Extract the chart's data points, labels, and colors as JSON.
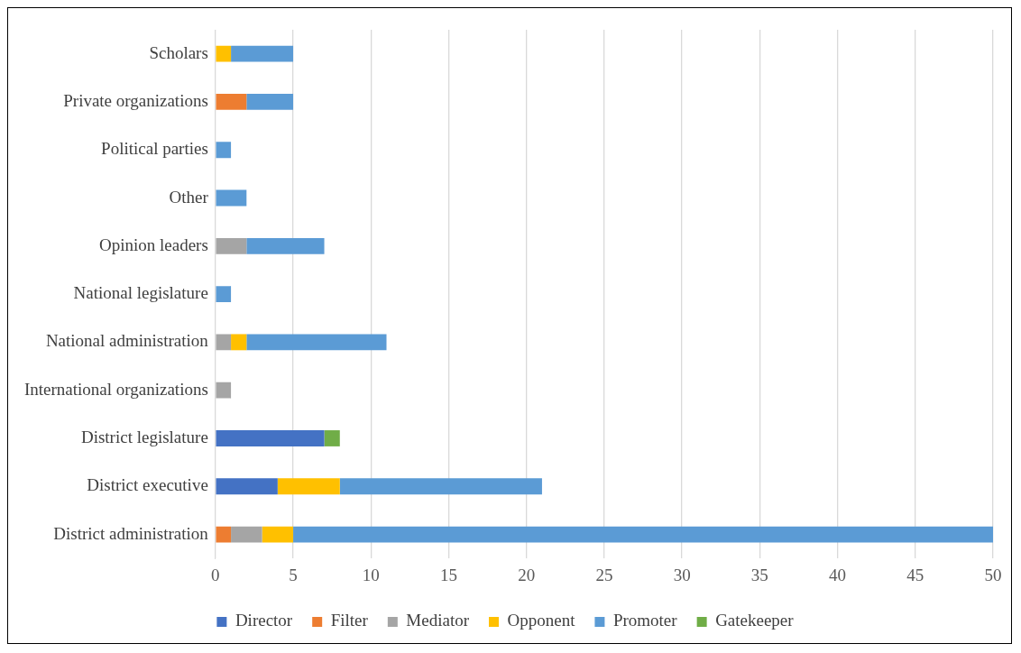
{
  "chart_data": {
    "type": "bar",
    "orientation": "horizontal",
    "stacked": true,
    "categories": [
      "Scholars",
      "Private organizations",
      "Political parties",
      "Other",
      "Opinion leaders",
      "National legislature",
      "National administration",
      "International organizations",
      "District legislature",
      "District executive",
      "District administration"
    ],
    "series": [
      {
        "name": "Director",
        "color": "#4472c4",
        "values": [
          null,
          null,
          null,
          null,
          null,
          null,
          null,
          null,
          7,
          4,
          null
        ]
      },
      {
        "name": "Filter",
        "color": "#ed7d31",
        "values": [
          null,
          2,
          null,
          null,
          null,
          null,
          null,
          null,
          null,
          null,
          1
        ]
      },
      {
        "name": "Mediator",
        "color": "#a5a5a5",
        "values": [
          null,
          null,
          null,
          null,
          2,
          null,
          1,
          1,
          null,
          null,
          2
        ]
      },
      {
        "name": "Opponent",
        "color": "#ffc000",
        "values": [
          1,
          null,
          null,
          null,
          null,
          null,
          1,
          null,
          null,
          4,
          2
        ]
      },
      {
        "name": "Promoter",
        "color": "#5b9bd5",
        "values": [
          4,
          3,
          1,
          2,
          5,
          1,
          9,
          null,
          null,
          13,
          45
        ]
      },
      {
        "name": "Gatekeeper",
        "color": "#70ad47",
        "values": [
          null,
          null,
          null,
          null,
          null,
          null,
          null,
          null,
          1,
          null,
          null
        ]
      }
    ],
    "xlim": [
      0,
      50
    ],
    "xticks": [
      0,
      5,
      10,
      15,
      20,
      25,
      30,
      35,
      40,
      45,
      50
    ],
    "grid": "x",
    "legend": "bottom"
  }
}
